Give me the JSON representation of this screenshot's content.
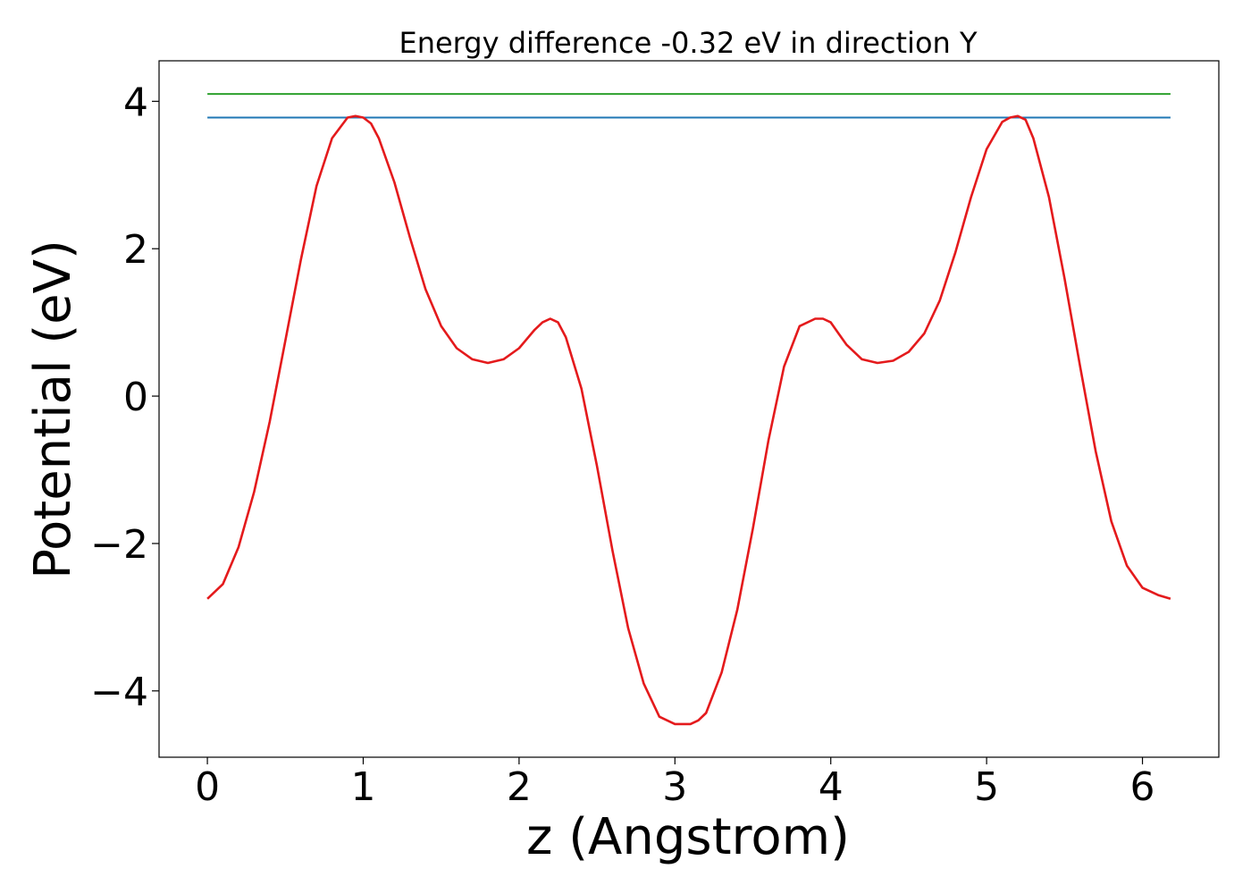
{
  "chart_data": {
    "type": "line",
    "title": "Energy difference -0.32 eV in direction Y",
    "xlabel": "z (Angstrom)",
    "ylabel": "Potential (eV)",
    "xlim": [
      -0.31,
      6.49
    ],
    "ylim": [
      -4.9,
      4.55
    ],
    "xticks": [
      0,
      1,
      2,
      3,
      4,
      5,
      6
    ],
    "xtick_labels": [
      "0",
      "1",
      "2",
      "3",
      "4",
      "5",
      "6"
    ],
    "yticks": [
      4,
      2,
      0,
      -2,
      -4
    ],
    "ytick_labels": [
      "4",
      "2",
      "0",
      "−2",
      "−4"
    ],
    "grid": false,
    "series": [
      {
        "color": "#2ca02c",
        "x": [
          0,
          6.18
        ],
        "y": [
          4.1,
          4.1
        ]
      },
      {
        "color": "#1f77b4",
        "x": [
          0,
          6.18
        ],
        "y": [
          3.78,
          3.78
        ]
      },
      {
        "color": "#e41a1c",
        "x": [
          0,
          0.1,
          0.2,
          0.3,
          0.4,
          0.5,
          0.6,
          0.7,
          0.8,
          0.9,
          0.95,
          1.0,
          1.05,
          1.1,
          1.2,
          1.3,
          1.4,
          1.5,
          1.6,
          1.7,
          1.8,
          1.9,
          2.0,
          2.1,
          2.15,
          2.2,
          2.25,
          2.3,
          2.4,
          2.5,
          2.6,
          2.7,
          2.8,
          2.9,
          3.0,
          3.05,
          3.1,
          3.15,
          3.2,
          3.3,
          3.4,
          3.5,
          3.6,
          3.7,
          3.8,
          3.9,
          3.95,
          4.0,
          4.05,
          4.1,
          4.2,
          4.3,
          4.4,
          4.5,
          4.6,
          4.7,
          4.8,
          4.9,
          5.0,
          5.1,
          5.15,
          5.2,
          5.25,
          5.3,
          5.4,
          5.5,
          5.6,
          5.7,
          5.8,
          5.9,
          6.0,
          6.1,
          6.18
        ],
        "y": [
          -2.75,
          -2.55,
          -2.05,
          -1.3,
          -0.35,
          0.75,
          1.85,
          2.85,
          3.5,
          3.78,
          3.8,
          3.78,
          3.7,
          3.5,
          2.9,
          2.15,
          1.45,
          0.95,
          0.65,
          0.5,
          0.45,
          0.5,
          0.65,
          0.9,
          1.0,
          1.05,
          1.0,
          0.8,
          0.1,
          -0.95,
          -2.1,
          -3.15,
          -3.9,
          -4.35,
          -4.45,
          -4.45,
          -4.45,
          -4.4,
          -4.3,
          -3.75,
          -2.9,
          -1.8,
          -0.6,
          0.4,
          0.95,
          1.05,
          1.05,
          1.0,
          0.85,
          0.7,
          0.5,
          0.45,
          0.48,
          0.6,
          0.85,
          1.3,
          1.95,
          2.7,
          3.35,
          3.72,
          3.78,
          3.8,
          3.75,
          3.5,
          2.7,
          1.6,
          0.4,
          -0.75,
          -1.7,
          -2.3,
          -2.6,
          -2.7,
          -2.75
        ]
      }
    ]
  }
}
